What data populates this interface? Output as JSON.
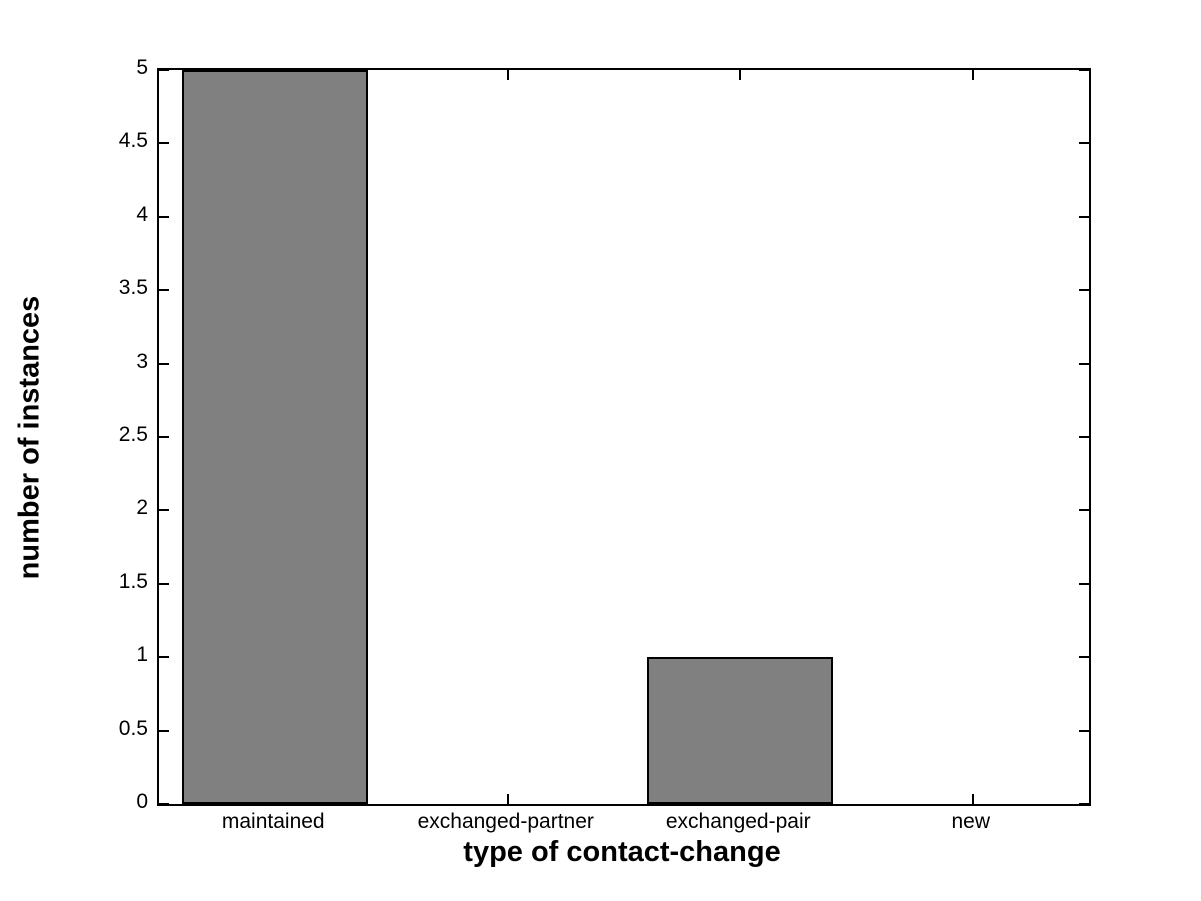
{
  "chart_data": {
    "type": "bar",
    "title": "",
    "xlabel": "type of contact-change",
    "ylabel": "number of instances",
    "categories": [
      "maintained",
      "exchanged-partner",
      "exchanged-pair",
      "new"
    ],
    "values": [
      5,
      0,
      1,
      0
    ],
    "ylim": [
      0,
      5
    ],
    "yticks": [
      0,
      0.5,
      1,
      1.5,
      2,
      2.5,
      3,
      3.5,
      4,
      4.5,
      5
    ],
    "ytick_labels": [
      "0",
      "0.5",
      "1",
      "1.5",
      "2",
      "2.5",
      "3",
      "3.5",
      "4",
      "4.5",
      "5"
    ],
    "grid": false,
    "box": true,
    "legend": null,
    "bar_color": "#808080",
    "bar_edge_color": "#000000",
    "axis_color": "#000000",
    "background_color": "#ffffff",
    "bar_width_fraction": 0.8
  }
}
